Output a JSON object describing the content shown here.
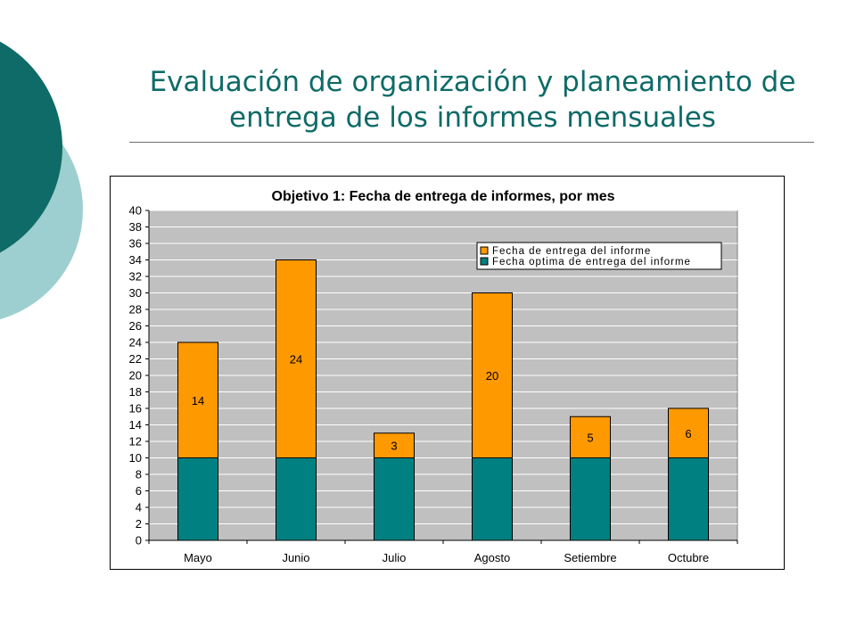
{
  "slide": {
    "title_line1": "Evaluación de organización y planeamiento de",
    "title_line2": "entrega de los informes mensuales",
    "colors": {
      "title": "#0e6b67",
      "circle_dark": "#0e6b67",
      "circle_light": "#9ecfd0"
    }
  },
  "chart_data": {
    "type": "bar",
    "stacked": true,
    "title": "Objetivo 1: Fecha de entrega de informes, por mes",
    "categories": [
      "Mayo",
      "Junio",
      "Julio",
      "Agosto",
      "Setiembre",
      "Octubre"
    ],
    "series": [
      {
        "name": "Fecha optima de entrega del informe",
        "values": [
          10,
          10,
          10,
          10,
          10,
          10
        ],
        "color": "#008080",
        "show_labels": false
      },
      {
        "name": "Fecha de entrega del informe",
        "values": [
          14,
          24,
          3,
          20,
          5,
          6
        ],
        "color": "#ff9900",
        "show_labels": true
      }
    ],
    "legend_order": [
      "Fecha de entrega del informe",
      "Fecha optima de entrega del informe"
    ],
    "ylim": [
      0,
      40
    ],
    "ytick_step": 2,
    "grid": true,
    "plot_background": "#c0c0c0",
    "legend_position": "top-right",
    "xlabel": "",
    "ylabel": ""
  }
}
